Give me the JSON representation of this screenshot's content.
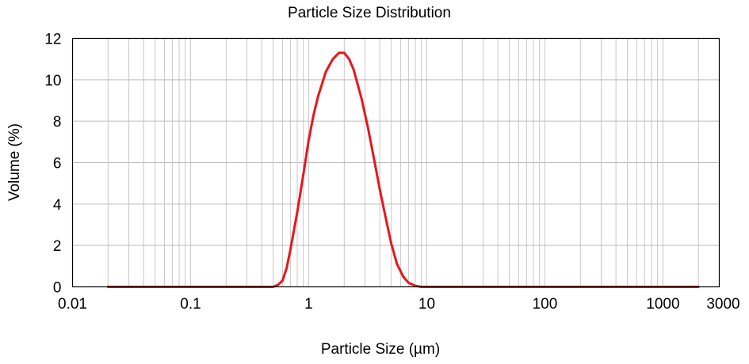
{
  "chart_data": {
    "type": "line",
    "title": "Particle Size Distribution",
    "xlabel": "Particle Size (µm)",
    "ylabel": "Volume (%)",
    "x_scale": "log",
    "xlim": [
      0.01,
      3000
    ],
    "ylim": [
      0,
      12
    ],
    "x_ticks": [
      {
        "value": 0.01,
        "label": "0.01"
      },
      {
        "value": 0.1,
        "label": "0.1"
      },
      {
        "value": 1,
        "label": "1"
      },
      {
        "value": 10,
        "label": "10"
      },
      {
        "value": 100,
        "label": "100"
      },
      {
        "value": 1000,
        "label": "1000"
      },
      {
        "value": 3000,
        "label": "3000"
      }
    ],
    "y_ticks": [
      {
        "value": 0,
        "label": "0"
      },
      {
        "value": 2,
        "label": "2"
      },
      {
        "value": 4,
        "label": "4"
      },
      {
        "value": 6,
        "label": "6"
      },
      {
        "value": 8,
        "label": "8"
      },
      {
        "value": 10,
        "label": "10"
      },
      {
        "value": 12,
        "label": "12"
      }
    ],
    "grid": true,
    "series": [
      {
        "color": "#e8161b",
        "x": [
          0.02,
          0.1,
          0.3,
          0.5,
          0.55,
          0.6,
          0.65,
          0.7,
          0.8,
          0.9,
          1.0,
          1.1,
          1.2,
          1.4,
          1.6,
          1.8,
          2.0,
          2.2,
          2.4,
          2.8,
          3.2,
          3.6,
          4.0,
          4.5,
          5.0,
          5.6,
          6.3,
          7.0,
          8.0,
          9.0,
          10,
          20,
          100,
          500,
          2000
        ],
        "y": [
          0,
          0,
          0,
          0,
          0.1,
          0.3,
          0.9,
          1.8,
          3.6,
          5.4,
          7.1,
          8.3,
          9.2,
          10.4,
          11.0,
          11.3,
          11.3,
          11.0,
          10.5,
          9.1,
          7.6,
          6.1,
          4.7,
          3.3,
          2.1,
          1.1,
          0.5,
          0.2,
          0.05,
          0,
          0,
          0,
          0,
          0,
          0
        ]
      }
    ]
  }
}
